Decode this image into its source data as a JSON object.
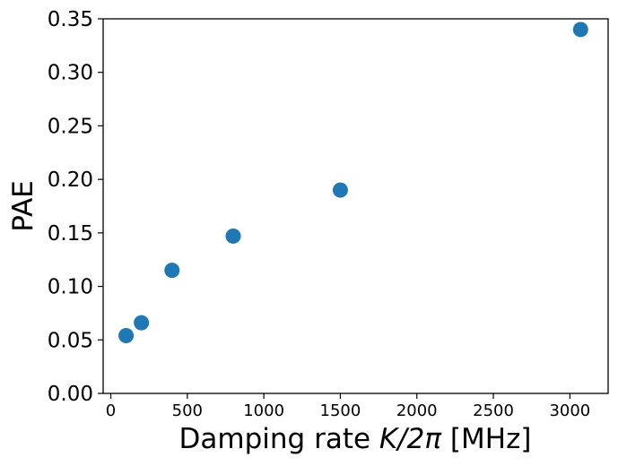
{
  "chart_data": {
    "type": "scatter",
    "title": "",
    "xlabel": {
      "prefix": "Damping rate ",
      "math": "K/2π",
      "suffix": " [MHz]"
    },
    "ylabel": "PAE",
    "xlim": [
      -50,
      3250
    ],
    "ylim": [
      0.0,
      0.35
    ],
    "x_ticks": [
      0,
      500,
      1000,
      1500,
      2000,
      2500,
      3000
    ],
    "x_tick_labels": [
      "0",
      "500",
      "1000",
      "1500",
      "2000",
      "2500",
      "3000"
    ],
    "y_ticks": [
      0.0,
      0.05,
      0.1,
      0.15,
      0.2,
      0.25,
      0.3,
      0.35
    ],
    "y_tick_labels": [
      "0.00",
      "0.05",
      "0.10",
      "0.15",
      "0.20",
      "0.25",
      "0.30",
      "0.35"
    ],
    "grid": false,
    "legend": false,
    "marker_color": "#1f77b4",
    "points": [
      {
        "x": 100,
        "y": 0.054
      },
      {
        "x": 200,
        "y": 0.066
      },
      {
        "x": 400,
        "y": 0.115
      },
      {
        "x": 800,
        "y": 0.147
      },
      {
        "x": 1500,
        "y": 0.19
      },
      {
        "x": 3070,
        "y": 0.34
      }
    ]
  }
}
